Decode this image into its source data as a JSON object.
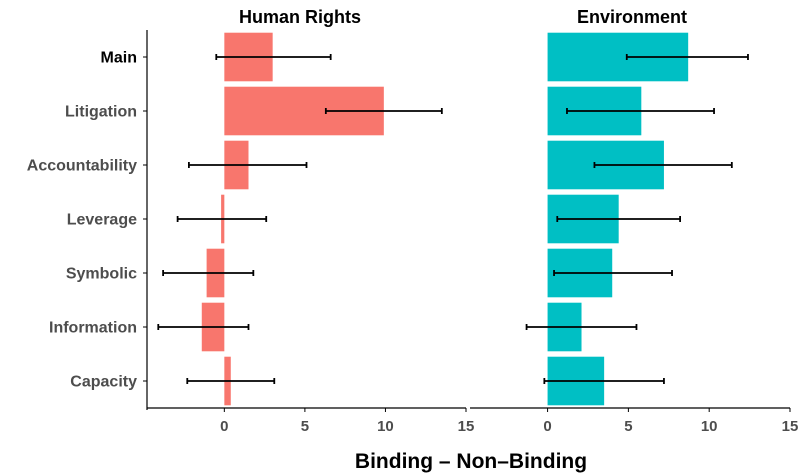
{
  "chart_data": [
    {
      "type": "bar",
      "orientation": "horizontal",
      "title": "Human Rights",
      "color": "#F8766D",
      "categories": [
        "Main",
        "Litigation",
        "Accountability",
        "Leverage",
        "Symbolic",
        "Information",
        "Capacity"
      ],
      "values": [
        3.0,
        9.9,
        1.5,
        -0.2,
        -1.1,
        -1.4,
        0.4
      ],
      "error_low": [
        -0.5,
        6.3,
        -2.2,
        -2.9,
        -3.8,
        -4.1,
        -2.3
      ],
      "error_high": [
        6.6,
        13.5,
        5.1,
        2.6,
        1.8,
        1.5,
        3.1
      ],
      "xlim": [
        -4.8,
        15
      ],
      "xticks": [
        "0",
        "5",
        "10",
        "15"
      ],
      "xtick_values": [
        0,
        5,
        10,
        15
      ]
    },
    {
      "type": "bar",
      "orientation": "horizontal",
      "title": "Environment",
      "color": "#00BFC4",
      "categories": [
        "Main",
        "Litigation",
        "Accountability",
        "Leverage",
        "Symbolic",
        "Information",
        "Capacity"
      ],
      "values": [
        8.7,
        5.8,
        7.2,
        4.4,
        4.0,
        2.1,
        3.5
      ],
      "error_low": [
        4.9,
        1.2,
        2.9,
        0.6,
        0.4,
        -1.3,
        -0.2
      ],
      "error_high": [
        12.4,
        10.3,
        11.4,
        8.2,
        7.7,
        5.5,
        7.2
      ],
      "xlim": [
        -4.8,
        15
      ],
      "xticks": [
        "0",
        "5",
        "10",
        "15"
      ],
      "xtick_values": [
        0,
        5,
        10,
        15
      ]
    }
  ],
  "xlabel": "Binding – Non–Binding",
  "bold_category": "Main"
}
